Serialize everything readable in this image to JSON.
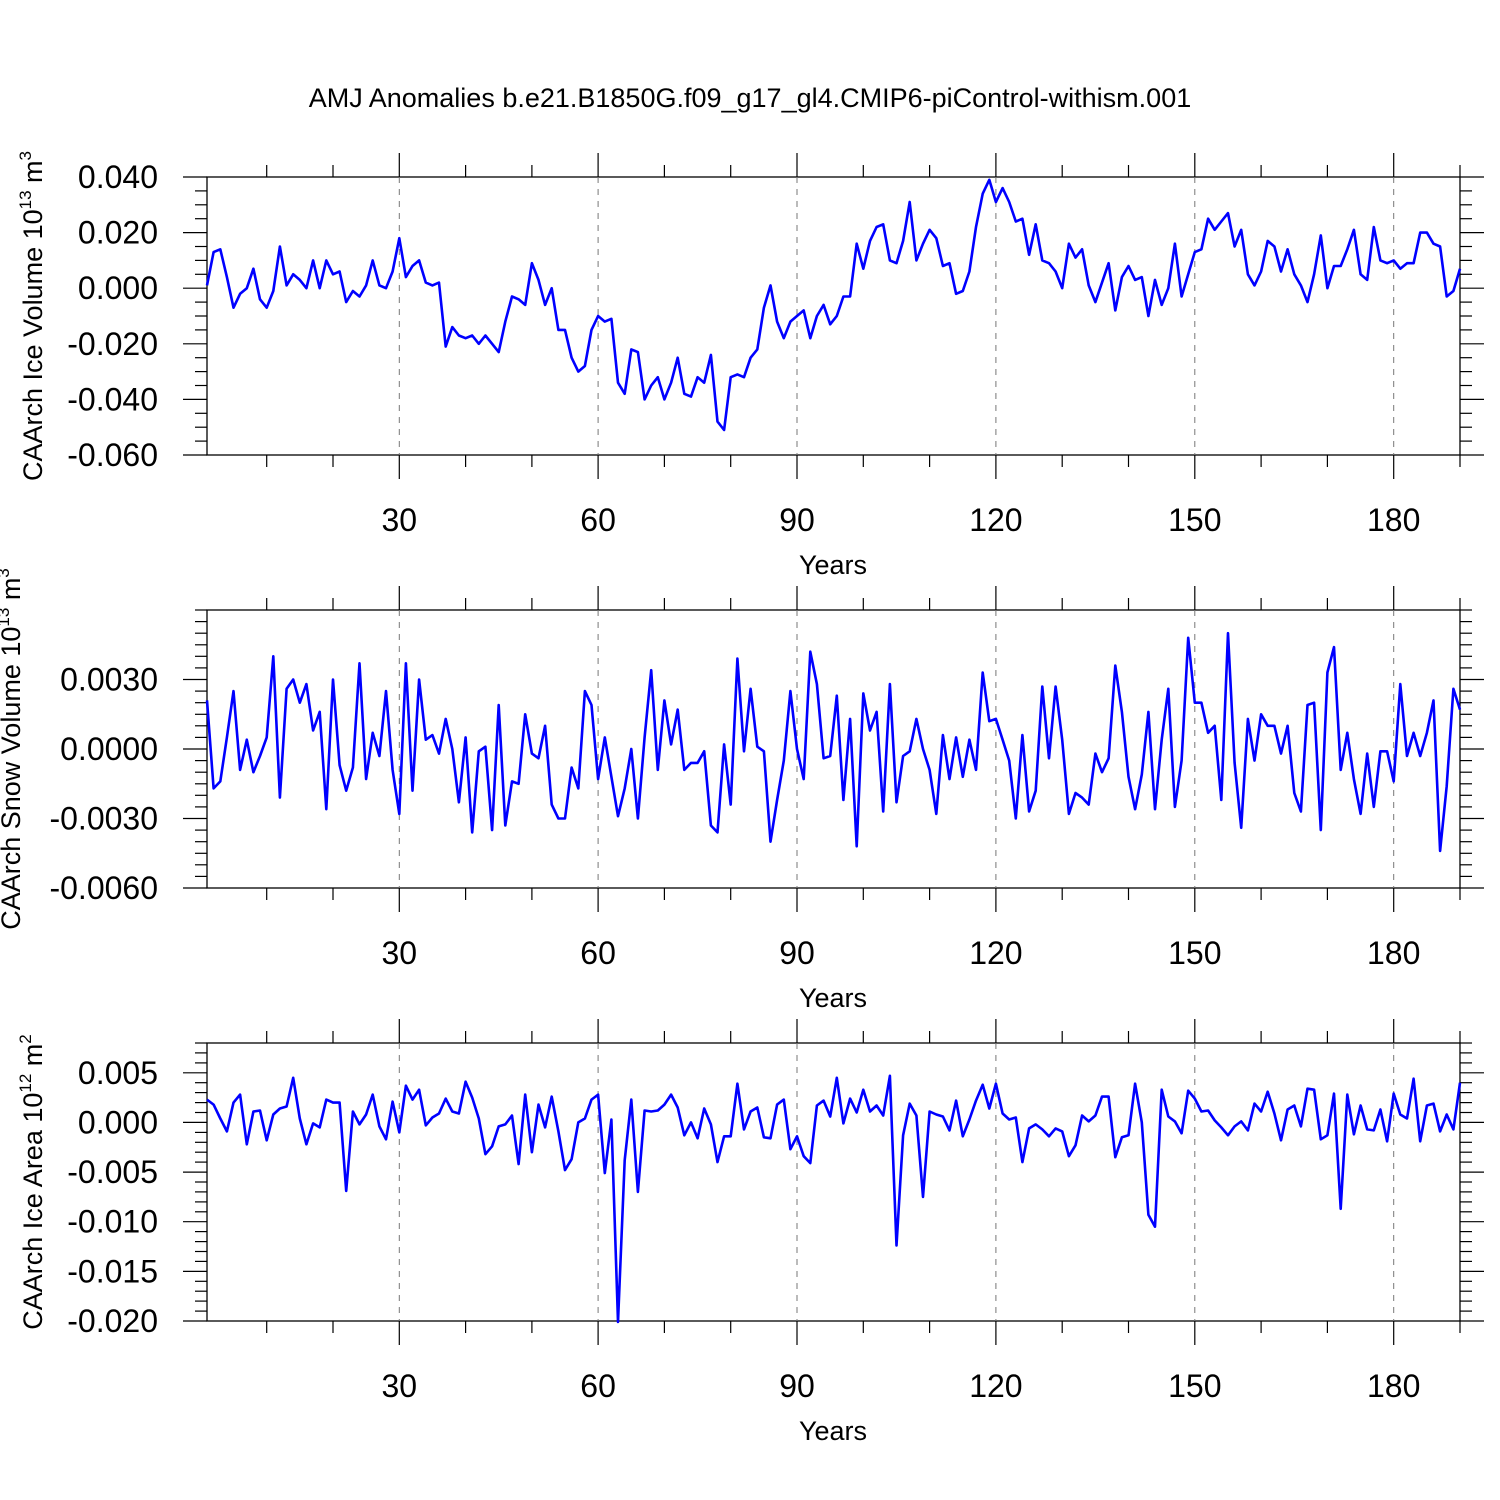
{
  "figure": {
    "title": "AMJ Anomalies b.e21.B1850G.f09_g17_gl4.CMIP6-piControl-withism.001",
    "line_color": "#0000ff"
  },
  "chart_data": [
    {
      "type": "line",
      "ylabel_prefix": "CAArch Ice Volume 10",
      "ylabel_exp": "13",
      "ylabel_unit": " m",
      "ylabel_unit_exp": "3",
      "xlabel": "Years",
      "xlim": [
        1,
        190
      ],
      "ylim": [
        -0.06,
        0.04
      ],
      "grid": "vertical dashed at major ticks",
      "x_ticks": [
        30,
        60,
        90,
        120,
        150,
        180
      ],
      "x_tick_labels": [
        "30",
        "60",
        "90",
        "120",
        "150",
        "180"
      ],
      "y_ticks": [
        -0.06,
        -0.04,
        -0.02,
        0.0,
        0.02,
        0.04
      ],
      "y_tick_labels": [
        "-0.060",
        "-0.040",
        "-0.020",
        "0.000",
        "0.020",
        "0.040"
      ],
      "y_minor_step": 0.005,
      "x_start": 1,
      "values": [
        0.001,
        0.013,
        0.014,
        0.004,
        -0.007,
        -0.002,
        0.0,
        0.007,
        -0.004,
        -0.007,
        -0.001,
        0.015,
        0.001,
        0.005,
        0.003,
        0.0,
        0.01,
        0.0,
        0.01,
        0.005,
        0.006,
        -0.005,
        -0.001,
        -0.003,
        0.001,
        0.01,
        0.001,
        0.0,
        0.006,
        0.018,
        0.004,
        0.008,
        0.01,
        0.002,
        0.001,
        0.002,
        -0.021,
        -0.014,
        -0.017,
        -0.018,
        -0.017,
        -0.02,
        -0.017,
        -0.02,
        -0.023,
        -0.012,
        -0.003,
        -0.004,
        -0.006,
        0.009,
        0.003,
        -0.006,
        0.0,
        -0.015,
        -0.015,
        -0.025,
        -0.03,
        -0.028,
        -0.015,
        -0.01,
        -0.012,
        -0.011,
        -0.034,
        -0.038,
        -0.022,
        -0.023,
        -0.04,
        -0.035,
        -0.032,
        -0.04,
        -0.034,
        -0.025,
        -0.038,
        -0.039,
        -0.032,
        -0.034,
        -0.024,
        -0.048,
        -0.051,
        -0.032,
        -0.031,
        -0.032,
        -0.025,
        -0.022,
        -0.007,
        0.001,
        -0.012,
        -0.018,
        -0.012,
        -0.01,
        -0.008,
        -0.018,
        -0.01,
        -0.006,
        -0.013,
        -0.01,
        -0.003,
        -0.003,
        0.016,
        0.007,
        0.017,
        0.022,
        0.023,
        0.01,
        0.009,
        0.017,
        0.031,
        0.01,
        0.016,
        0.021,
        0.018,
        0.008,
        0.009,
        -0.002,
        -0.001,
        0.006,
        0.022,
        0.034,
        0.039,
        0.031,
        0.036,
        0.031,
        0.024,
        0.025,
        0.012,
        0.023,
        0.01,
        0.009,
        0.006,
        0.0,
        0.016,
        0.011,
        0.014,
        0.001,
        -0.005,
        0.002,
        0.009,
        -0.008,
        0.004,
        0.008,
        0.003,
        0.004,
        -0.01,
        0.003,
        -0.006,
        0.0,
        0.016,
        -0.003,
        0.005,
        0.013,
        0.014,
        0.025,
        0.021,
        0.024,
        0.027,
        0.015,
        0.021,
        0.005,
        0.001,
        0.006,
        0.017,
        0.015,
        0.006,
        0.014,
        0.005,
        0.001,
        -0.005,
        0.005,
        0.019,
        0.0,
        0.008,
        0.008,
        0.014,
        0.021,
        0.005,
        0.003,
        0.022,
        0.01,
        0.009,
        0.01,
        0.007,
        0.009,
        0.009,
        0.02,
        0.02,
        0.016,
        0.015,
        -0.003,
        -0.001,
        0.007
      ]
    },
    {
      "type": "line",
      "ylabel_prefix": "CAArch Snow Volume 10",
      "ylabel_exp": "13",
      "ylabel_unit": " m",
      "ylabel_unit_exp": "3",
      "xlabel": "Years",
      "xlim": [
        1,
        190
      ],
      "ylim": [
        -0.006,
        0.006
      ],
      "grid": "vertical dashed at major ticks",
      "x_ticks": [
        30,
        60,
        90,
        120,
        150,
        180
      ],
      "x_tick_labels": [
        "30",
        "60",
        "90",
        "120",
        "150",
        "180"
      ],
      "y_ticks": [
        -0.006,
        -0.003,
        0.0,
        0.003
      ],
      "y_tick_labels": [
        "-0.0060",
        "-0.0030",
        "0.0000",
        "0.0030"
      ],
      "y_minor_step": 0.0005,
      "x_start": 1,
      "values": [
        0.0021,
        -0.0017,
        -0.0014,
        0.0005,
        0.0025,
        -0.0009,
        0.0004,
        -0.001,
        -0.0003,
        0.0005,
        0.004,
        -0.0021,
        0.0026,
        0.003,
        0.002,
        0.0028,
        0.0008,
        0.0016,
        -0.0026,
        0.003,
        -0.0007,
        -0.0018,
        -0.0008,
        0.0037,
        -0.0013,
        0.0007,
        -0.0003,
        0.0025,
        -0.0009,
        -0.0028,
        0.0037,
        -0.0018,
        0.003,
        0.0004,
        0.0006,
        -0.0002,
        0.0013,
        0.0,
        -0.0023,
        0.0005,
        -0.0036,
        -0.0001,
        0.0001,
        -0.0035,
        0.0019,
        -0.0033,
        -0.0014,
        -0.0015,
        0.0015,
        -0.0002,
        -0.0004,
        0.001,
        -0.0024,
        -0.003,
        -0.003,
        -0.0008,
        -0.0017,
        0.0025,
        0.0019,
        -0.0013,
        0.0005,
        -0.0012,
        -0.0029,
        -0.0017,
        0.0,
        -0.003,
        0.0005,
        0.0034,
        -0.0009,
        0.0021,
        0.0002,
        0.0017,
        -0.0009,
        -0.0006,
        -0.0006,
        -0.0001,
        -0.0033,
        -0.0036,
        0.0002,
        -0.0024,
        0.0039,
        -0.0001,
        0.0026,
        0.0001,
        -0.0001,
        -0.004,
        -0.0022,
        -0.0005,
        0.0025,
        0.0,
        -0.0013,
        0.0042,
        0.0028,
        -0.0004,
        -0.0003,
        0.0023,
        -0.0022,
        0.0013,
        -0.0042,
        0.0024,
        0.0008,
        0.0016,
        -0.0027,
        0.0028,
        -0.0023,
        -0.0003,
        -0.0001,
        0.0013,
        0.0,
        -0.0009,
        -0.0028,
        0.0006,
        -0.0013,
        0.0005,
        -0.0012,
        0.0004,
        -0.0009,
        0.0033,
        0.0012,
        0.0013,
        0.0004,
        -0.0005,
        -0.003,
        0.0006,
        -0.0027,
        -0.0018,
        0.0027,
        -0.0004,
        0.0027,
        0.0004,
        -0.0028,
        -0.0019,
        -0.0021,
        -0.0024,
        -0.0002,
        -0.001,
        -0.0004,
        0.0036,
        0.0016,
        -0.0012,
        -0.0026,
        -0.0011,
        0.0016,
        -0.0026,
        0.0004,
        0.0026,
        -0.0025,
        -0.0005,
        0.0048,
        0.002,
        0.002,
        0.0007,
        0.001,
        -0.0022,
        0.005,
        -0.0006,
        -0.0034,
        0.0013,
        -0.0005,
        0.0015,
        0.001,
        0.001,
        -0.0002,
        0.001,
        -0.0019,
        -0.0027,
        0.0019,
        0.002,
        -0.0035,
        0.0033,
        0.0044,
        -0.0009,
        0.0007,
        -0.0013,
        -0.0028,
        -0.0002,
        -0.0025,
        -0.0001,
        -0.0001,
        -0.0014,
        0.0028,
        -0.0003,
        0.0007,
        -0.0003,
        0.0007,
        0.0021,
        -0.0044,
        -0.0016,
        0.0026,
        0.0017
      ]
    },
    {
      "type": "line",
      "ylabel_prefix": "CAArch Ice Area 10",
      "ylabel_exp": "12",
      "ylabel_unit": " m",
      "ylabel_unit_exp": "2",
      "xlabel": "Years",
      "xlim": [
        1,
        190
      ],
      "ylim": [
        -0.02,
        0.008
      ],
      "grid": "vertical dashed at major ticks",
      "x_ticks": [
        30,
        60,
        90,
        120,
        150,
        180
      ],
      "x_tick_labels": [
        "30",
        "60",
        "90",
        "120",
        "150",
        "180"
      ],
      "y_ticks": [
        -0.02,
        -0.015,
        -0.01,
        -0.005,
        0.0,
        0.005
      ],
      "y_tick_labels": [
        "-0.020",
        "-0.015",
        "-0.010",
        "-0.005",
        "0.000",
        "0.005"
      ],
      "y_minor_step": 0.001,
      "x_start": 1,
      "values": [
        0.0023,
        0.0018,
        0.0004,
        -0.0009,
        0.002,
        0.0028,
        -0.0022,
        0.0011,
        0.0012,
        -0.0018,
        0.0008,
        0.0014,
        0.0016,
        0.0045,
        0.0004,
        -0.0022,
        -0.0001,
        -0.0005,
        0.0023,
        0.002,
        0.002,
        -0.0069,
        0.0011,
        -0.0002,
        0.0008,
        0.0028,
        -0.0004,
        -0.0017,
        0.0021,
        -0.001,
        0.0037,
        0.0023,
        0.0033,
        -0.0003,
        0.0005,
        0.0009,
        0.0024,
        0.0011,
        0.0009,
        0.0041,
        0.0025,
        0.0004,
        -0.0032,
        -0.0024,
        -0.0004,
        -0.0002,
        0.0007,
        -0.0042,
        0.0028,
        -0.003,
        0.0018,
        -0.0005,
        0.0026,
        -0.0009,
        -0.0048,
        -0.0037,
        0.0,
        0.0004,
        0.0023,
        0.0028,
        -0.0051,
        0.0003,
        -0.0201,
        -0.0038,
        0.0023,
        -0.007,
        0.0012,
        0.0011,
        0.0012,
        0.0018,
        0.0028,
        0.0015,
        -0.0013,
        0.0,
        -0.0016,
        0.0014,
        -0.0002,
        -0.004,
        -0.0014,
        -0.0014,
        0.0039,
        -0.0007,
        0.0011,
        0.0015,
        -0.0015,
        -0.0016,
        0.0018,
        0.0023,
        -0.0027,
        -0.0014,
        -0.0034,
        -0.0041,
        0.0017,
        0.0022,
        0.0006,
        0.0045,
        -0.0001,
        0.0024,
        0.001,
        0.0033,
        0.0011,
        0.0017,
        0.0007,
        0.0047,
        -0.0124,
        -0.0013,
        0.0019,
        0.0007,
        -0.0075,
        0.0011,
        0.0008,
        0.0006,
        -0.0008,
        0.0022,
        -0.0014,
        0.0003,
        0.0022,
        0.0038,
        0.0014,
        0.0039,
        0.0009,
        0.0003,
        0.0005,
        -0.004,
        -0.0006,
        -0.0002,
        -0.0007,
        -0.0014,
        -0.0006,
        -0.0009,
        -0.0034,
        -0.0023,
        0.0007,
        0.0001,
        0.0007,
        0.0026,
        0.0026,
        -0.0035,
        -0.0015,
        -0.0013,
        0.0039,
        0.0,
        -0.0093,
        -0.0105,
        0.0033,
        0.0006,
        0.0001,
        -0.0011,
        0.0032,
        0.0024,
        0.0011,
        0.0012,
        0.0002,
        -0.0005,
        -0.0013,
        -0.0004,
        0.0001,
        -0.0008,
        0.0019,
        0.0011,
        0.0031,
        0.0009,
        -0.0018,
        0.0013,
        0.0017,
        -0.0004,
        0.0034,
        0.0033,
        -0.0017,
        -0.0013,
        0.0029,
        -0.0087,
        0.0028,
        -0.0012,
        0.0017,
        -0.0007,
        -0.0008,
        0.0013,
        -0.0019,
        0.0029,
        0.0008,
        0.0004,
        0.0044,
        -0.0019,
        0.0017,
        0.0019,
        -0.0009,
        0.0008,
        -0.0007,
        0.004
      ]
    }
  ]
}
